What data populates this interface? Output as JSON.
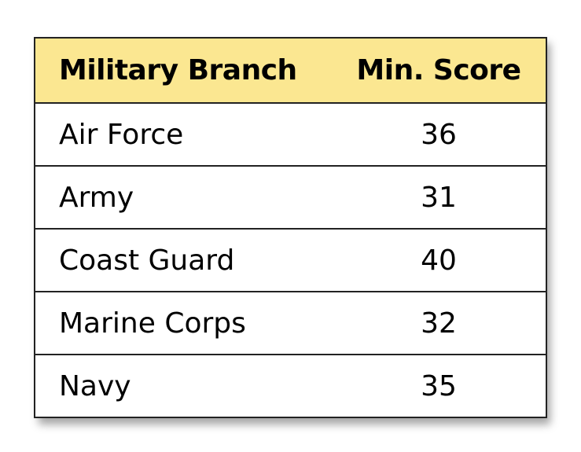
{
  "table": {
    "headers": {
      "branch": "Military Branch",
      "score": "Min. Score"
    },
    "rows": [
      {
        "branch": "Air Force",
        "score": "36"
      },
      {
        "branch": "Army",
        "score": "31"
      },
      {
        "branch": "Coast Guard",
        "score": "40"
      },
      {
        "branch": "Marine Corps",
        "score": "32"
      },
      {
        "branch": "Navy",
        "score": "35"
      }
    ]
  },
  "colors": {
    "header_background": "#fbe791",
    "border": "#222222",
    "text": "#000000"
  }
}
